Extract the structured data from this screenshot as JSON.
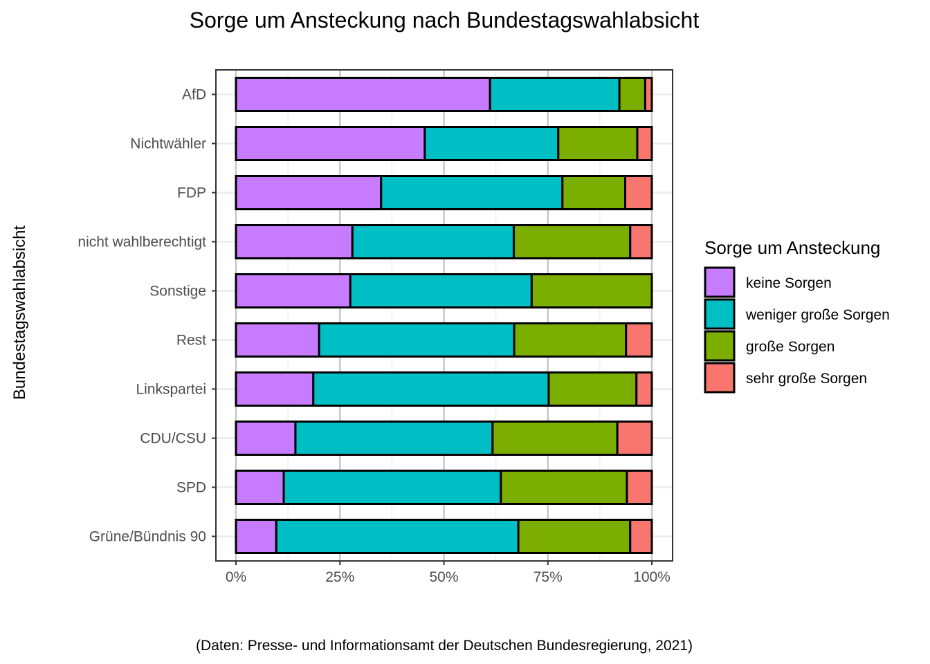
{
  "chart_data": {
    "type": "bar",
    "orientation": "horizontal",
    "stacked": "percent",
    "title": "Sorge um Ansteckung nach Bundestagswahlabsicht",
    "xlabel": "",
    "ylabel": "Bundestagswahlabsicht",
    "caption": "(Daten: Presse- und Informationsamt der Deutschen Bundesregierung, 2021)",
    "xlim": [
      0,
      100
    ],
    "xticks": [
      "0%",
      "25%",
      "50%",
      "75%",
      "100%"
    ],
    "xtick_values": [
      0,
      25,
      50,
      75,
      100
    ],
    "grid": true,
    "legend": {
      "title": "Sorge um Ansteckung",
      "placement": "right"
    },
    "categories": [
      "AfD",
      "Nichtwähler",
      "FDP",
      "nicht wahlberechtigt",
      "Sonstige",
      "Rest",
      "Linkspartei",
      "CDU/CSU",
      "SPD",
      "Grüne/Bündnis 90"
    ],
    "series": [
      {
        "name": "keine Sorgen",
        "color": "#C77CFF",
        "values": [
          61.1,
          45.4,
          34.9,
          28.0,
          27.5,
          20.0,
          18.6,
          14.3,
          11.5,
          9.7
        ]
      },
      {
        "name": "weniger große Sorgen",
        "color": "#00BFC4",
        "values": [
          31.1,
          32.1,
          43.6,
          38.8,
          43.6,
          46.9,
          56.6,
          47.4,
          52.2,
          58.2
        ]
      },
      {
        "name": "große Sorgen",
        "color": "#7CAE00",
        "values": [
          6.2,
          19.0,
          15.1,
          28.0,
          28.9,
          26.9,
          21.1,
          30.0,
          30.3,
          26.9
        ]
      },
      {
        "name": "sehr große Sorgen",
        "color": "#F8766D",
        "values": [
          1.6,
          3.5,
          6.4,
          5.2,
          0.0,
          6.2,
          3.7,
          8.3,
          6.0,
          5.2
        ]
      }
    ]
  }
}
